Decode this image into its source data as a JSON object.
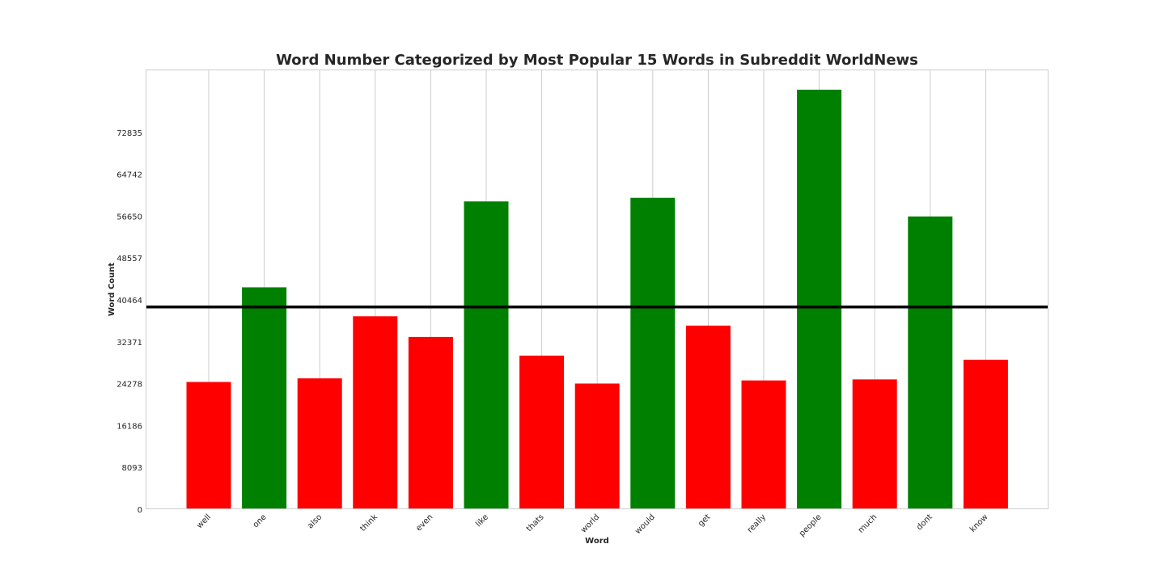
{
  "chart_data": {
    "type": "bar",
    "title": "Word Number Categorized by Most Popular 15 Words in Subreddit WorldNews",
    "xlabel": "Word",
    "ylabel": "Word Count",
    "categories": [
      "well",
      "one",
      "also",
      "think",
      "even",
      "like",
      "thats",
      "world",
      "would",
      "get",
      "really",
      "people",
      "much",
      "dont",
      "know"
    ],
    "values": [
      24600,
      42900,
      25300,
      37300,
      33300,
      59500,
      29700,
      24300,
      60200,
      35500,
      24900,
      81100,
      25100,
      56600,
      28900
    ],
    "bar_colors": [
      "#ff0000",
      "#008000",
      "#ff0000",
      "#ff0000",
      "#ff0000",
      "#008000",
      "#ff0000",
      "#ff0000",
      "#008000",
      "#ff0000",
      "#ff0000",
      "#008000",
      "#ff0000",
      "#008000",
      "#ff0000"
    ],
    "yticks": [
      0,
      8093,
      16186,
      24278,
      32371,
      40464,
      48557,
      56650,
      64742,
      72835
    ],
    "ylim": [
      0,
      85000
    ],
    "reference_line": 39100,
    "reference_line_color": "#000000",
    "grid": true,
    "xtick_rotation": 45,
    "colors": {
      "above_reference": "#008000",
      "below_reference": "#ff0000",
      "grid": "#cccccc",
      "spine": "#cccccc",
      "text": "#262626"
    }
  }
}
